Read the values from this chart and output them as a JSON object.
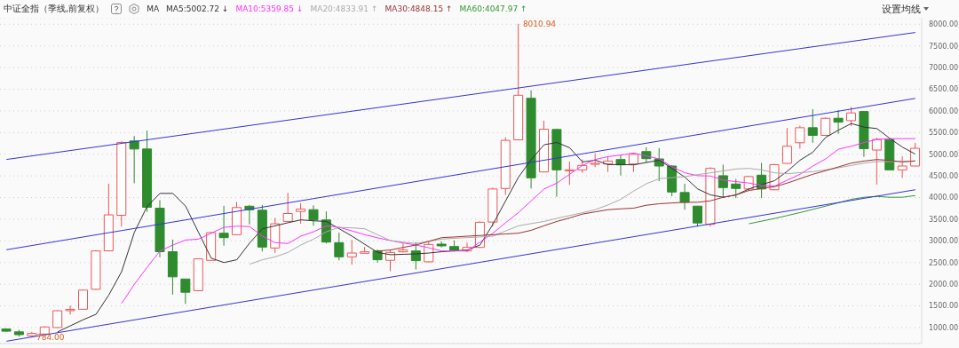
{
  "chart_data": {
    "type": "candlestick",
    "title": "中证全指（季线,前复权）",
    "legend_title": "MA",
    "legend": "top left",
    "grid": "y",
    "tick_labels": "y",
    "categories": [
      null,
      null,
      null,
      null,
      null,
      null,
      null,
      null,
      null,
      null,
      null,
      null,
      null,
      null,
      null,
      null,
      null,
      null,
      null,
      null,
      null,
      null,
      null,
      null,
      null,
      null,
      null,
      null,
      null,
      null,
      null,
      null,
      null,
      null,
      null,
      null,
      null,
      null,
      null,
      null,
      null,
      null,
      null,
      null,
      null,
      null,
      null,
      null,
      null,
      null,
      null,
      null,
      null,
      null,
      null,
      null,
      null,
      null,
      null,
      null,
      null,
      null,
      null,
      null,
      null,
      null,
      null,
      null,
      null,
      null,
      null,
      null
    ],
    "ylim": [
      630,
      8150
    ],
    "yticks": [
      {
        "value": 1000,
        "label": "1000.00"
      },
      {
        "value": 1500,
        "label": "1500.00"
      },
      {
        "value": 2000,
        "label": "2000.00"
      },
      {
        "value": 2500,
        "label": "2500.00"
      },
      {
        "value": 3000,
        "label": "3000.00"
      },
      {
        "value": 3500,
        "label": "3500.00"
      },
      {
        "value": 4000,
        "label": "4000.00"
      },
      {
        "value": 4500,
        "label": "4500.00"
      },
      {
        "value": 5000,
        "label": "5000.00"
      },
      {
        "value": 5500,
        "label": "5500.00"
      },
      {
        "value": 6000,
        "label": "6000.00"
      },
      {
        "value": 6500,
        "label": "6500.00"
      },
      {
        "value": 7000,
        "label": "7000.00"
      },
      {
        "value": 7500,
        "label": "7500.00"
      },
      {
        "value": 8000,
        "label": "8000.00"
      }
    ],
    "annotations": [
      "设置均线",
      "8010.94",
      "784.00"
    ],
    "series": [
      {
        "ohlc": [
          [
            965,
            985,
            900,
            915
          ],
          [
            900,
            945,
            790,
            835
          ],
          [
            810,
            900,
            784,
            863
          ],
          [
            850,
            1030,
            840,
            1013
          ],
          [
            1000,
            1400,
            990,
            1387
          ],
          [
            1390,
            1510,
            1300,
            1420
          ],
          [
            1422,
            1880,
            1410,
            1863
          ],
          [
            1883,
            2790,
            1870,
            2768
          ],
          [
            2770,
            4320,
            2760,
            3600
          ],
          [
            3590,
            5300,
            3330,
            5270
          ],
          [
            5306,
            5420,
            4330,
            5120
          ],
          [
            5120,
            5545,
            3670,
            3775
          ],
          [
            3755,
            3940,
            2620,
            2750
          ],
          [
            2750,
            3030,
            1760,
            2170
          ],
          [
            2120,
            2120,
            1545,
            1815
          ],
          [
            1850,
            2590,
            1840,
            2585
          ],
          [
            2550,
            3210,
            2540,
            3190
          ],
          [
            3177,
            3810,
            2890,
            3075
          ],
          [
            3143,
            3900,
            3140,
            3769
          ],
          [
            3800,
            3830,
            3380,
            3720
          ],
          [
            3708,
            3830,
            2755,
            2857
          ],
          [
            2836,
            3530,
            2720,
            3394
          ],
          [
            3450,
            4110,
            3440,
            3632
          ],
          [
            3680,
            3870,
            3400,
            3734
          ],
          [
            3720,
            3820,
            3350,
            3483
          ],
          [
            3483,
            3680,
            2940,
            2973
          ],
          [
            2959,
            3190,
            2550,
            2632
          ],
          [
            2632,
            3020,
            2450,
            2720
          ],
          [
            2714,
            2860,
            2700,
            2748
          ],
          [
            2768,
            2800,
            2500,
            2565
          ],
          [
            2551,
            2800,
            2300,
            2734
          ],
          [
            2748,
            2940,
            2730,
            2789
          ],
          [
            2768,
            2970,
            2340,
            2544
          ],
          [
            2517,
            2980,
            2500,
            2918
          ],
          [
            2925,
            2990,
            2850,
            2885
          ],
          [
            2870,
            3010,
            2750,
            2780
          ],
          [
            2770,
            2960,
            2740,
            2850
          ],
          [
            2850,
            3450,
            2840,
            3430
          ],
          [
            3435,
            4230,
            3330,
            4198
          ],
          [
            4210,
            5390,
            4060,
            5320
          ],
          [
            5333,
            8010.94,
            5320,
            6361
          ],
          [
            6292,
            6475,
            4210,
            4455
          ],
          [
            4592,
            5775,
            4580,
            5578
          ],
          [
            5571,
            5590,
            4020,
            4639
          ],
          [
            4618,
            4830,
            4290,
            4639
          ],
          [
            4639,
            4880,
            4570,
            4741
          ],
          [
            4769,
            5020,
            4700,
            4789
          ],
          [
            4775,
            4950,
            4590,
            4843
          ],
          [
            4878,
            4980,
            4510,
            4755
          ],
          [
            4775,
            5030,
            4592,
            5000
          ],
          [
            5061,
            5160,
            4810,
            4898
          ],
          [
            4892,
            5140,
            4380,
            4728
          ],
          [
            4728,
            4750,
            4030,
            4128
          ],
          [
            4116,
            4320,
            3720,
            3891
          ],
          [
            3802,
            3810,
            3330,
            3414
          ],
          [
            3381,
            4700,
            3330,
            4673
          ],
          [
            4504,
            4760,
            3990,
            4230
          ],
          [
            4312,
            4430,
            3990,
            4210
          ],
          [
            4198,
            4500,
            4170,
            4483
          ],
          [
            4517,
            4800,
            3990,
            4198
          ],
          [
            4180,
            4780,
            4170,
            4760
          ],
          [
            4790,
            5606,
            4780,
            5184
          ],
          [
            5265,
            5660,
            5130,
            5612
          ],
          [
            5612,
            6040,
            5265,
            5435
          ],
          [
            5435,
            5850,
            5420,
            5830
          ],
          [
            5830,
            6020,
            5470,
            5740
          ],
          [
            5775,
            6090,
            5650,
            5953
          ],
          [
            5986,
            6000,
            4940,
            5129
          ],
          [
            5096,
            5380,
            4300,
            5340
          ],
          [
            5340,
            5380,
            4630,
            4639
          ],
          [
            4639,
            4950,
            4450,
            4728
          ],
          [
            4728,
            5260,
            4720,
            5137
          ]
        ]
      },
      {
        "type": "line",
        "name": "MA5:5002.72 ↓",
        "color": "#333333",
        "values": [
          null,
          null,
          null,
          null,
          900,
          1040,
          1180,
          1306,
          1750,
          2290,
          3200,
          3800,
          4096,
          4096,
          3800,
          3200,
          2600,
          2500,
          2565,
          2950,
          3280,
          3347,
          3420,
          3484,
          3463,
          3449,
          3280,
          3109,
          2920,
          2734,
          2680,
          2690,
          2700,
          2720,
          2750,
          2770,
          2789,
          2905,
          3381,
          3925,
          4470,
          4878,
          5218,
          5271,
          5149,
          4822,
          4863,
          4761,
          4761,
          4755,
          4810,
          4863,
          4673,
          4470,
          4198,
          4061,
          4007,
          4061,
          4198,
          4300,
          4388,
          4606,
          4863,
          5047,
          5388,
          5557,
          5708,
          5626,
          5592,
          5367,
          5163,
          5002.72
        ]
      },
      {
        "type": "line",
        "name": "MA10:5359.85 ↓",
        "color": "#ff33ff",
        "values": [
          null,
          null,
          null,
          null,
          null,
          null,
          null,
          null,
          null,
          1557,
          2000,
          2394,
          2768,
          2905,
          3020,
          3040,
          3177,
          3313,
          3340,
          3330,
          3109,
          2959,
          2940,
          3109,
          3211,
          3347,
          3313,
          3230,
          3143,
          3070,
          3007,
          2950,
          2905,
          2840,
          2768,
          2768,
          2768,
          2973,
          3177,
          3420,
          3653,
          3925,
          4198,
          4334,
          4538,
          4741,
          4878,
          4946,
          4980,
          5027,
          4959,
          4892,
          4708,
          4571,
          4504,
          4497,
          4402,
          4368,
          4334,
          4279,
          4265,
          4402,
          4538,
          4728,
          4892,
          5116,
          5184,
          5271,
          5340,
          5360,
          5360,
          5359.85
        ]
      },
      {
        "type": "line",
        "name": "MA20:4833.91 ↑",
        "color": "#aaaaaa",
        "values": [
          null,
          null,
          null,
          null,
          null,
          null,
          null,
          null,
          null,
          null,
          null,
          null,
          null,
          null,
          null,
          null,
          null,
          null,
          null,
          2462,
          2565,
          2632,
          2734,
          2905,
          3040,
          3211,
          3313,
          3300,
          3279,
          3140,
          3007,
          2970,
          2939,
          2990,
          3040,
          3060,
          3075,
          3090,
          3109,
          3230,
          3347,
          3400,
          3449,
          3520,
          3585,
          3650,
          3720,
          3830,
          3960,
          4150,
          4320,
          4436,
          4460,
          4483,
          4530,
          4571,
          4615,
          4660,
          4673,
          4639,
          4571,
          4551,
          4575,
          4598,
          4640,
          4687,
          4740,
          4795,
          4830,
          4830,
          4835,
          4833.91
        ]
      },
      {
        "type": "line",
        "name": "MA30:4848.15 ↑",
        "color": "#993333",
        "values": [
          null,
          null,
          null,
          null,
          null,
          null,
          null,
          null,
          null,
          null,
          null,
          null,
          null,
          null,
          null,
          null,
          null,
          null,
          null,
          null,
          null,
          null,
          null,
          null,
          null,
          null,
          null,
          null,
          null,
          2768,
          2789,
          2850,
          2905,
          2990,
          3075,
          3090,
          3109,
          3125,
          3143,
          3160,
          3177,
          3245,
          3350,
          3449,
          3530,
          3619,
          3670,
          3720,
          3740,
          3755,
          3823,
          3857,
          3875,
          3891,
          3891,
          3925,
          4007,
          4061,
          4163,
          4210,
          4252,
          4334,
          4436,
          4538,
          4620,
          4708,
          4795,
          4843,
          4878,
          4857,
          4823,
          4848.15
        ]
      },
      {
        "type": "line",
        "name": "MA60:4047.97 ↑",
        "color": "#339933",
        "values": [
          null,
          null,
          null,
          null,
          null,
          null,
          null,
          null,
          null,
          null,
          null,
          null,
          null,
          null,
          null,
          null,
          null,
          null,
          null,
          null,
          null,
          null,
          null,
          null,
          null,
          null,
          null,
          null,
          null,
          null,
          null,
          null,
          null,
          null,
          null,
          null,
          null,
          null,
          null,
          null,
          null,
          null,
          null,
          null,
          null,
          null,
          null,
          null,
          null,
          null,
          null,
          null,
          null,
          null,
          null,
          null,
          null,
          null,
          3395,
          3456,
          3517,
          3585,
          3653,
          3728,
          3802,
          3880,
          3959,
          4007,
          4027,
          4007,
          4007,
          4047.97
        ]
      },
      {
        "type": "line",
        "color": "#3333dd",
        "values": [
          684,
          null,
          null,
          null,
          null,
          null,
          null,
          null,
          null,
          null,
          null,
          null,
          null,
          null,
          null,
          null,
          null,
          null,
          null,
          null,
          null,
          null,
          null,
          null,
          null,
          null,
          null,
          null,
          null,
          null,
          null,
          null,
          null,
          null,
          null,
          null,
          null,
          null,
          null,
          null,
          null,
          null,
          null,
          null,
          null,
          null,
          null,
          null,
          null,
          null,
          null,
          null,
          null,
          null,
          null,
          null,
          null,
          null,
          null,
          null,
          null,
          null,
          null,
          null,
          null,
          null,
          null,
          null,
          null,
          null,
          null,
          4180
        ]
      },
      {
        "type": "line",
        "color": "#3333dd",
        "values": [
          2795,
          null,
          null,
          null,
          null,
          null,
          null,
          null,
          null,
          null,
          null,
          null,
          null,
          null,
          null,
          null,
          null,
          null,
          null,
          null,
          null,
          null,
          null,
          null,
          null,
          null,
          null,
          null,
          null,
          null,
          null,
          null,
          null,
          null,
          null,
          null,
          null,
          null,
          null,
          null,
          null,
          null,
          null,
          null,
          null,
          null,
          null,
          null,
          null,
          null,
          null,
          null,
          null,
          null,
          null,
          null,
          null,
          null,
          null,
          null,
          null,
          null,
          null,
          null,
          null,
          null,
          null,
          null,
          null,
          null,
          null,
          6289
        ]
      },
      {
        "type": "line",
        "color": "#3333dd",
        "values": [
          4879,
          null,
          null,
          null,
          null,
          null,
          null,
          null,
          null,
          null,
          null,
          null,
          null,
          null,
          null,
          null,
          null,
          null,
          null,
          null,
          null,
          null,
          null,
          null,
          null,
          null,
          null,
          null,
          null,
          null,
          null,
          null,
          null,
          null,
          null,
          null,
          null,
          null,
          null,
          null,
          null,
          null,
          null,
          null,
          null,
          null,
          null,
          null,
          null,
          null,
          null,
          null,
          null,
          null,
          null,
          null,
          null,
          null,
          null,
          null,
          null,
          null,
          null,
          null,
          null,
          null,
          null,
          null,
          null,
          null,
          null,
          7810
        ]
      }
    ]
  }
}
